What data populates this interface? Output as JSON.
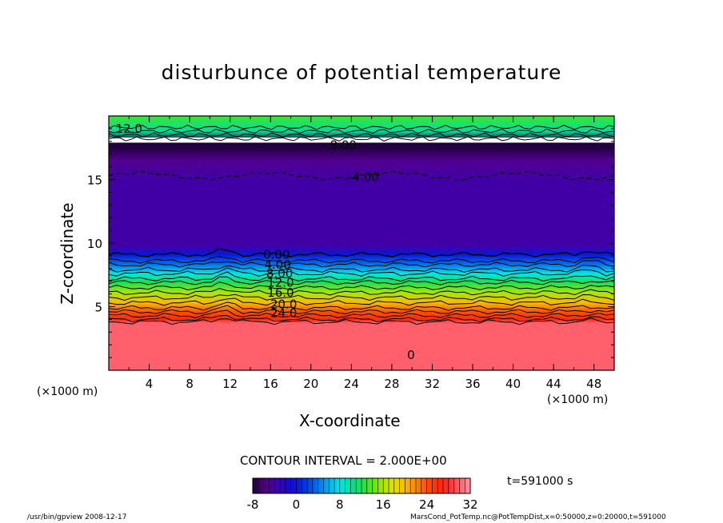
{
  "chart_data": {
    "type": "heatmap",
    "title": "disturbunce of potential temperature",
    "xlabel": "X-coordinate",
    "ylabel": "Z-coordinate",
    "x_unit_label": "(×1000 m)",
    "xlim": [
      0,
      50
    ],
    "ylim": [
      0,
      20
    ],
    "x_ticks": [
      "4",
      "8",
      "12",
      "16",
      "20",
      "24",
      "28",
      "32",
      "36",
      "40",
      "44",
      "48"
    ],
    "y_ticks": [
      "5",
      "10",
      "15"
    ],
    "contour_interval_text": "CONTOUR INTERVAL = 2.000E+00",
    "time_label": "t=591000 s",
    "colorbar": {
      "min": -8,
      "max": 32,
      "ticks": [
        "-8",
        "0",
        "8",
        "16",
        "24",
        "32"
      ]
    },
    "contour_labels": [
      {
        "text": "0.00",
        "x": 16.6,
        "z": 9.1
      },
      {
        "text": "4.00",
        "x": 16.7,
        "z": 8.3
      },
      {
        "text": "8.00",
        "x": 16.9,
        "z": 7.6
      },
      {
        "text": "12.0",
        "x": 17.0,
        "z": 6.9
      },
      {
        "text": "16.0",
        "x": 17.0,
        "z": 6.1
      },
      {
        "text": "20.0",
        "x": 17.3,
        "z": 5.2
      },
      {
        "text": "24.0",
        "x": 17.3,
        "z": 4.5
      },
      {
        "text": "-4.00",
        "x": 25.2,
        "z": 15.2
      },
      {
        "text": "8.00",
        "x": 23.2,
        "z": 17.7
      },
      {
        "text": "12.0",
        "x": 2.0,
        "z": 19.0
      },
      {
        "text": "0",
        "x": 29.9,
        "z": 1.2
      }
    ],
    "profile": [
      {
        "z": 0.0,
        "value": 30
      },
      {
        "z": 3.7,
        "value": 30
      },
      {
        "z": 4.0,
        "value": 26
      },
      {
        "z": 4.6,
        "value": 24
      },
      {
        "z": 5.3,
        "value": 20
      },
      {
        "z": 6.1,
        "value": 16
      },
      {
        "z": 6.9,
        "value": 12
      },
      {
        "z": 7.6,
        "value": 8
      },
      {
        "z": 8.3,
        "value": 4
      },
      {
        "z": 9.1,
        "value": 0
      },
      {
        "z": 9.8,
        "value": -4
      },
      {
        "z": 15.0,
        "value": -4
      },
      {
        "z": 16.5,
        "value": -5
      },
      {
        "z": 17.6,
        "value": -8
      },
      {
        "z": 18.0,
        "value": -8
      },
      {
        "z": 18.8,
        "value": 10
      },
      {
        "z": 20.0,
        "value": 13
      }
    ]
  },
  "footer": {
    "left": "/usr/bin/gpview   2008-12-17",
    "right": "MarsCond_PotTemp.nc@PotTempDist,x=0:50000,z=0:20000,t=591000"
  },
  "colors": {
    "background": "#ffffff",
    "contour_line": "#000000"
  }
}
